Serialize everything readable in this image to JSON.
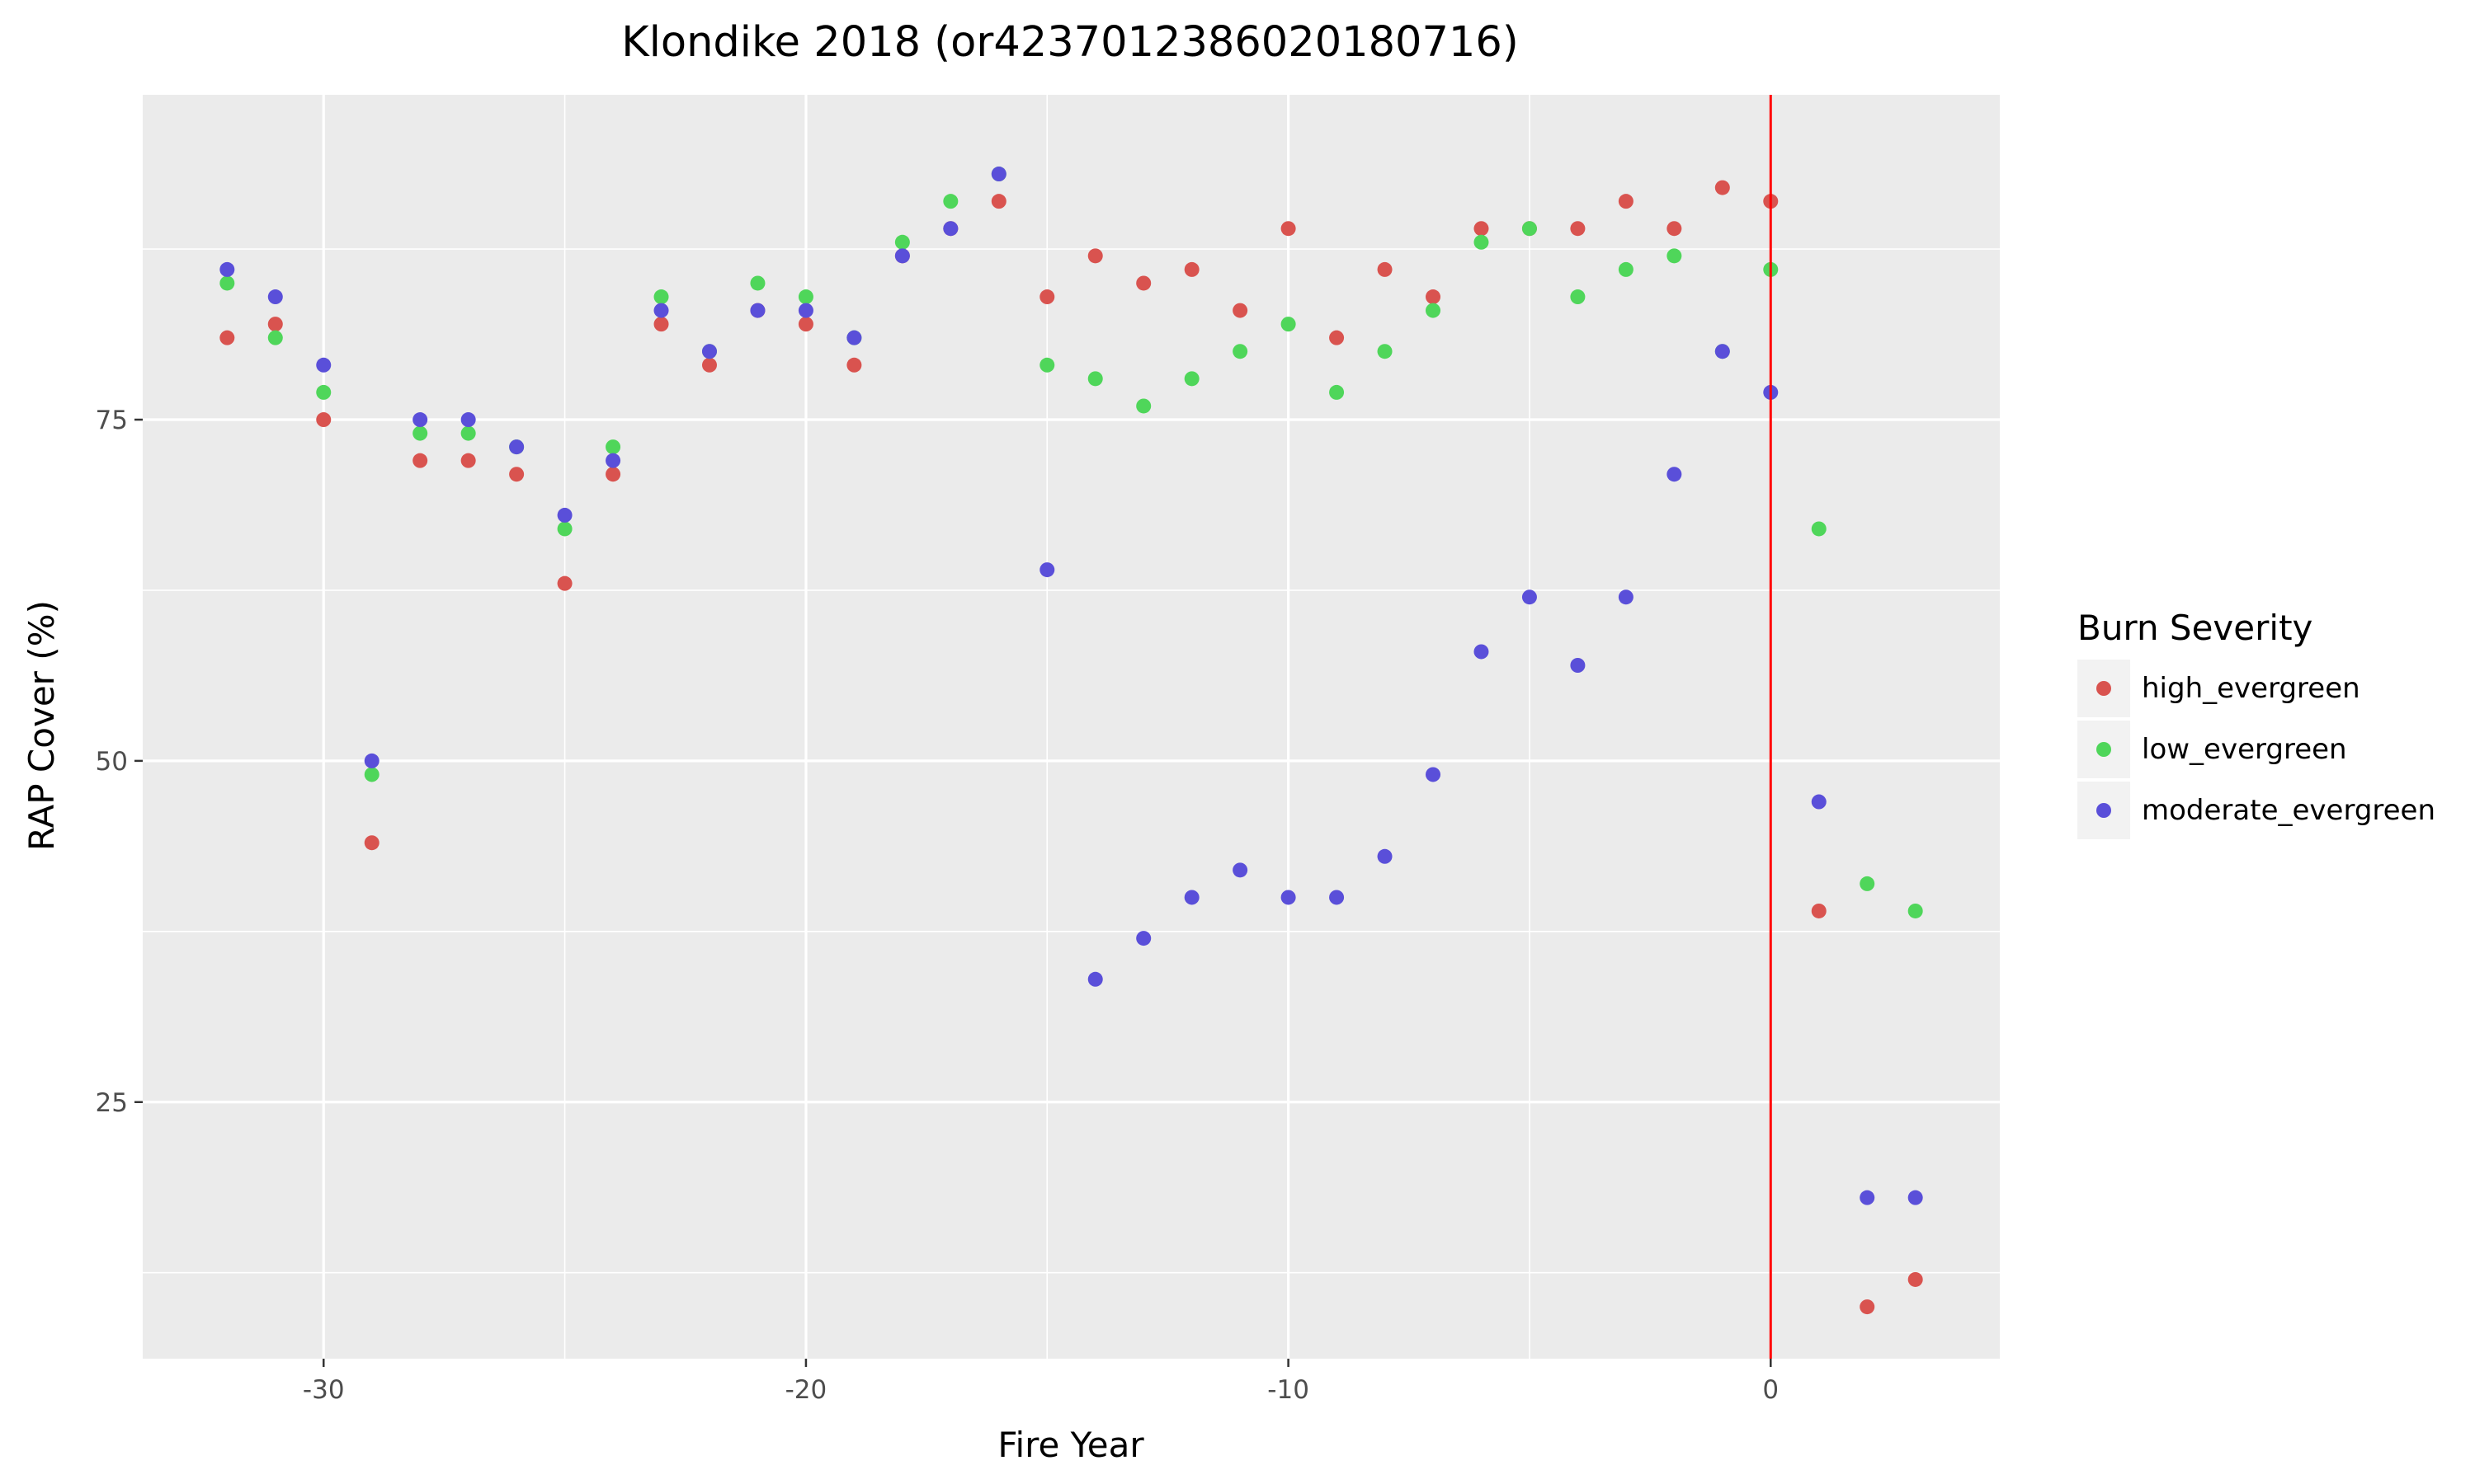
{
  "chart_data": {
    "type": "scatter",
    "title": "Klondike 2018 (or4237012386020180716)",
    "xlabel": "Fire Year",
    "ylabel": "RAP Cover (%)",
    "xlim": [
      -33.75,
      4.75
    ],
    "ylim": [
      6.2,
      98.8
    ],
    "x_ticks": [
      -30,
      -20,
      -10,
      0
    ],
    "x_tick_labels": [
      "-30",
      "-20",
      "-10",
      "0"
    ],
    "y_ticks": [
      25,
      50,
      75
    ],
    "y_tick_labels": [
      "25",
      "50",
      "75"
    ],
    "grid": true,
    "vline": {
      "x": 0,
      "color": "#ff0000"
    },
    "legend": {
      "title": "Burn Severity",
      "placement": "right",
      "entries": [
        "high_evergreen",
        "low_evergreen",
        "moderate_evergreen"
      ]
    },
    "series": [
      {
        "name": "high_evergreen",
        "color": "#d9534f",
        "points": [
          [
            -32,
            81
          ],
          [
            -31,
            82
          ],
          [
            -30,
            75
          ],
          [
            -29,
            44
          ],
          [
            -28,
            72
          ],
          [
            -27,
            72
          ],
          [
            -26,
            71
          ],
          [
            -25,
            63
          ],
          [
            -24,
            71
          ],
          [
            -23,
            82
          ],
          [
            -22,
            79
          ],
          [
            -21,
            83
          ],
          [
            -20,
            82
          ],
          [
            -19,
            79
          ],
          [
            -18,
            87
          ],
          [
            -17,
            89
          ],
          [
            -16,
            91
          ],
          [
            -15,
            84
          ],
          [
            -14,
            87
          ],
          [
            -13,
            85
          ],
          [
            -12,
            86
          ],
          [
            -11,
            83
          ],
          [
            -10,
            89
          ],
          [
            -9,
            81
          ],
          [
            -8,
            86
          ],
          [
            -7,
            84
          ],
          [
            -6,
            89
          ],
          [
            -5,
            89
          ],
          [
            -4,
            89
          ],
          [
            -3,
            91
          ],
          [
            -2,
            89
          ],
          [
            -1,
            92
          ],
          [
            0,
            91
          ],
          [
            1,
            39
          ],
          [
            2,
            10
          ],
          [
            3,
            12
          ]
        ]
      },
      {
        "name": "low_evergreen",
        "color": "#4fd65a",
        "points": [
          [
            -32,
            85
          ],
          [
            -31,
            81
          ],
          [
            -30,
            77
          ],
          [
            -29,
            49
          ],
          [
            -28,
            74
          ],
          [
            -27,
            74
          ],
          [
            -26,
            73
          ],
          [
            -25,
            67
          ],
          [
            -24,
            73
          ],
          [
            -23,
            84
          ],
          [
            -22,
            80
          ],
          [
            -21,
            85
          ],
          [
            -20,
            84
          ],
          [
            -19,
            81
          ],
          [
            -18,
            88
          ],
          [
            -17,
            91
          ],
          [
            -16,
            93
          ],
          [
            -15,
            79
          ],
          [
            -14,
            78
          ],
          [
            -13,
            76
          ],
          [
            -12,
            78
          ],
          [
            -11,
            80
          ],
          [
            -10,
            82
          ],
          [
            -9,
            77
          ],
          [
            -8,
            80
          ],
          [
            -7,
            83
          ],
          [
            -6,
            88
          ],
          [
            -5,
            89
          ],
          [
            -4,
            84
          ],
          [
            -3,
            86
          ],
          [
            -2,
            87
          ],
          [
            -1,
            80
          ],
          [
            0,
            86
          ],
          [
            1,
            67
          ],
          [
            2,
            41
          ],
          [
            3,
            39
          ]
        ]
      },
      {
        "name": "moderate_evergreen",
        "color": "#5a4fd9",
        "points": [
          [
            -32,
            86
          ],
          [
            -31,
            84
          ],
          [
            -30,
            79
          ],
          [
            -29,
            50
          ],
          [
            -28,
            75
          ],
          [
            -27,
            75
          ],
          [
            -26,
            73
          ],
          [
            -25,
            68
          ],
          [
            -24,
            72
          ],
          [
            -23,
            83
          ],
          [
            -22,
            80
          ],
          [
            -21,
            83
          ],
          [
            -20,
            83
          ],
          [
            -19,
            81
          ],
          [
            -18,
            87
          ],
          [
            -17,
            89
          ],
          [
            -16,
            93
          ],
          [
            -15,
            64
          ],
          [
            -14,
            34
          ],
          [
            -13,
            37
          ],
          [
            -12,
            40
          ],
          [
            -11,
            42
          ],
          [
            -10,
            40
          ],
          [
            -9,
            40
          ],
          [
            -8,
            43
          ],
          [
            -7,
            49
          ],
          [
            -6,
            58
          ],
          [
            -5,
            62
          ],
          [
            -4,
            57
          ],
          [
            -3,
            62
          ],
          [
            -2,
            71
          ],
          [
            -1,
            80
          ],
          [
            0,
            77
          ],
          [
            1,
            47
          ],
          [
            2,
            18
          ],
          [
            3,
            18
          ]
        ]
      }
    ]
  }
}
